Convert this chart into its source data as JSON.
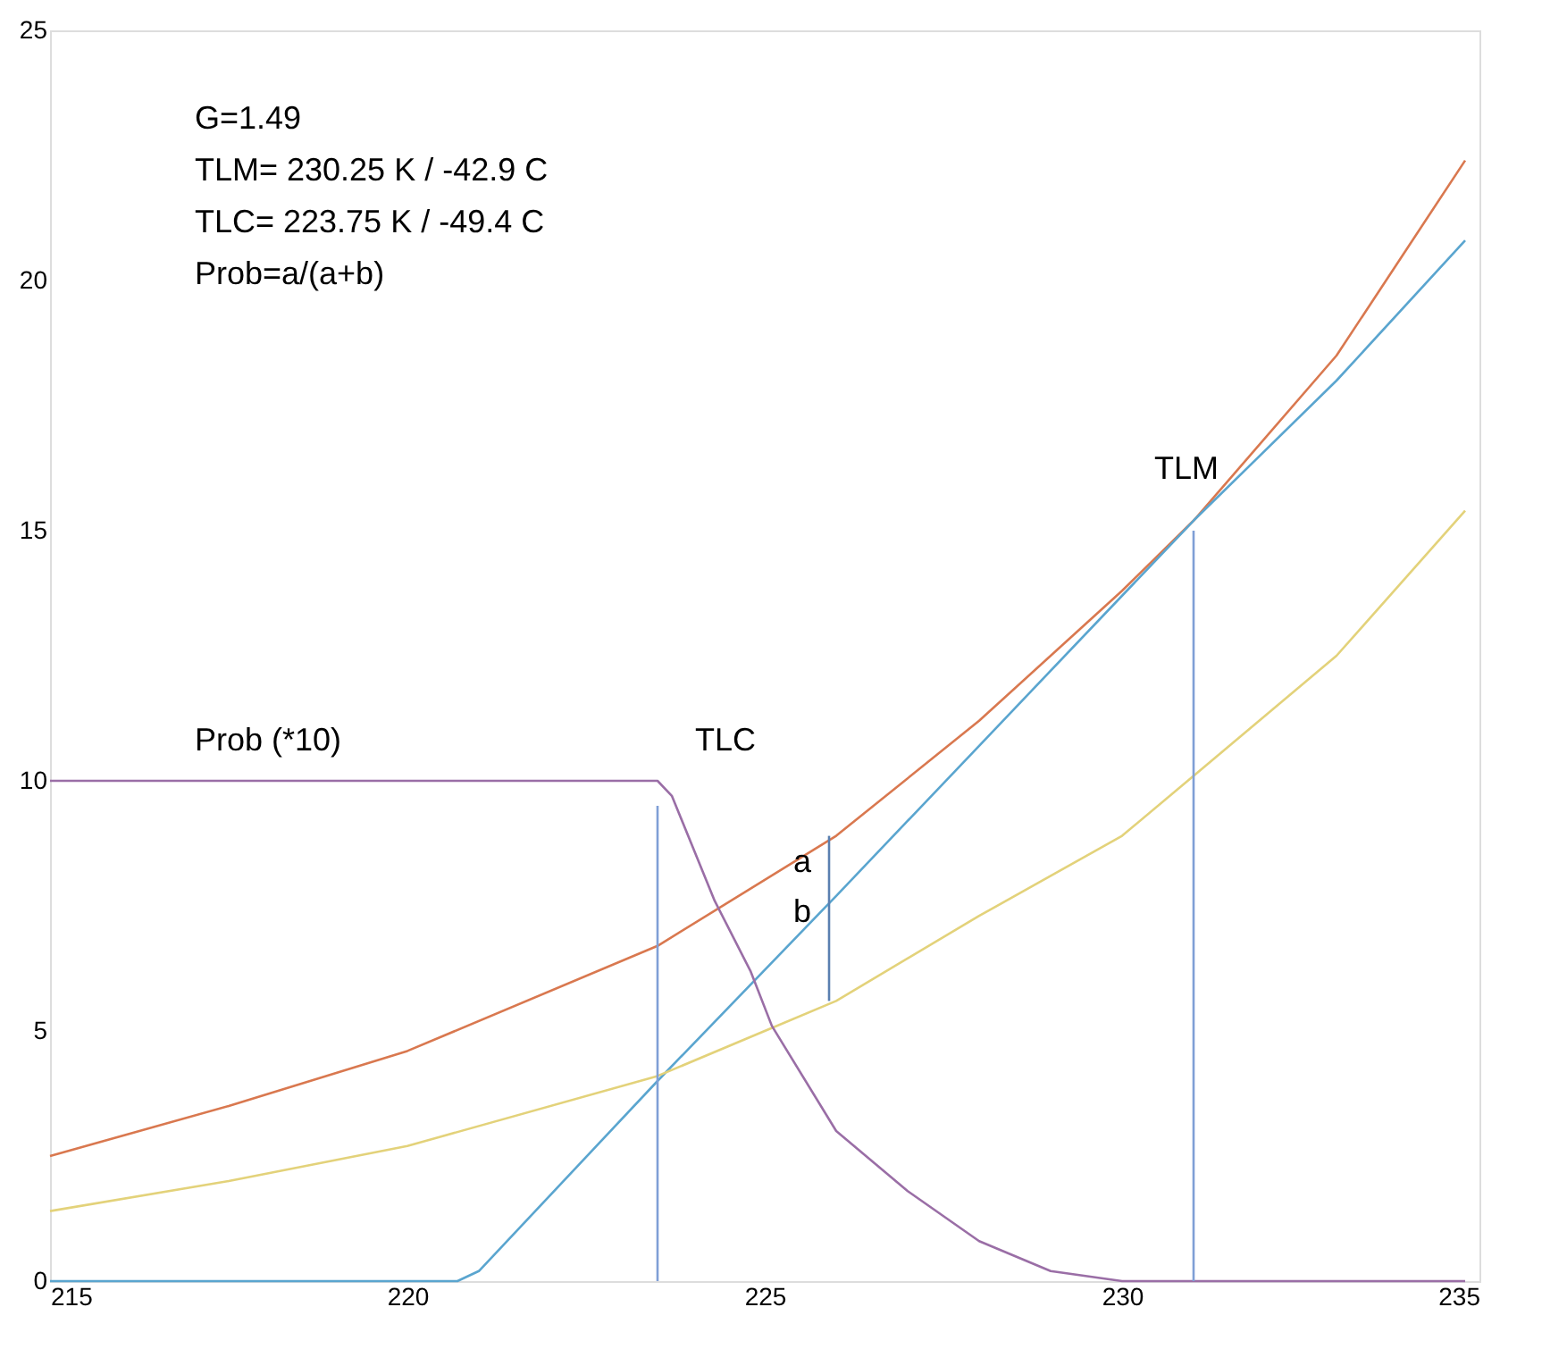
{
  "chart_data": {
    "type": "line",
    "xlim": [
      215,
      235
    ],
    "ylim": [
      0,
      25
    ],
    "xticks": [
      215,
      220,
      225,
      230,
      235
    ],
    "yticks": [
      0,
      5,
      10,
      15,
      20,
      25
    ],
    "grid": false,
    "marker": "none",
    "line_style": "solid",
    "series": [
      {
        "color": "#d9784f",
        "x": [
          215,
          217.5,
          220,
          223.5,
          226,
          228,
          230,
          231,
          233,
          234.8
        ],
        "values": [
          2.5,
          3.5,
          4.6,
          6.7,
          8.9,
          11.2,
          13.8,
          15.2,
          18.5,
          22.4
        ]
      },
      {
        "color": "#5aa5cf",
        "x": [
          215,
          220.7,
          221,
          223.5,
          226,
          228,
          231,
          233,
          234.8
        ],
        "values": [
          0,
          0,
          0.2,
          4.0,
          7.7,
          10.7,
          15.2,
          18.0,
          20.8
        ]
      },
      {
        "color": "#e3d27a",
        "x": [
          215,
          217.5,
          220,
          223.5,
          225,
          226,
          228,
          230,
          231,
          233,
          234.8
        ],
        "values": [
          1.4,
          2.0,
          2.7,
          4.1,
          5.0,
          5.6,
          7.3,
          8.9,
          10.1,
          12.5,
          15.4
        ]
      },
      {
        "color": "#9a6ea6",
        "x": [
          215,
          223.5,
          223.7,
          224.3,
          224.8,
          225.1,
          226,
          227,
          228,
          229,
          230,
          234.8
        ],
        "values": [
          10,
          10,
          9.7,
          7.6,
          6.2,
          5.1,
          3.0,
          1.8,
          0.8,
          0.2,
          0,
          0
        ]
      },
      {
        "color": "#7f9fd6",
        "x": [
          223.5,
          223.5
        ],
        "values": [
          0,
          9.5
        ]
      },
      {
        "color": "#7f9fd6",
        "x": [
          231,
          231
        ],
        "values": [
          0,
          15
        ]
      },
      {
        "color": "#5a7fb0",
        "x": [
          225.9,
          225.9
        ],
        "values": [
          5.6,
          8.9
        ]
      }
    ],
    "annotations": [
      "G=1.49",
      "TLM= 230.25 K / -42.9 C",
      "TLC= 223.75 K / -49.4 C",
      "Prob=a/(a+b)",
      "Prob (*10)",
      "TLC",
      "TLM",
      "a",
      "b"
    ]
  }
}
